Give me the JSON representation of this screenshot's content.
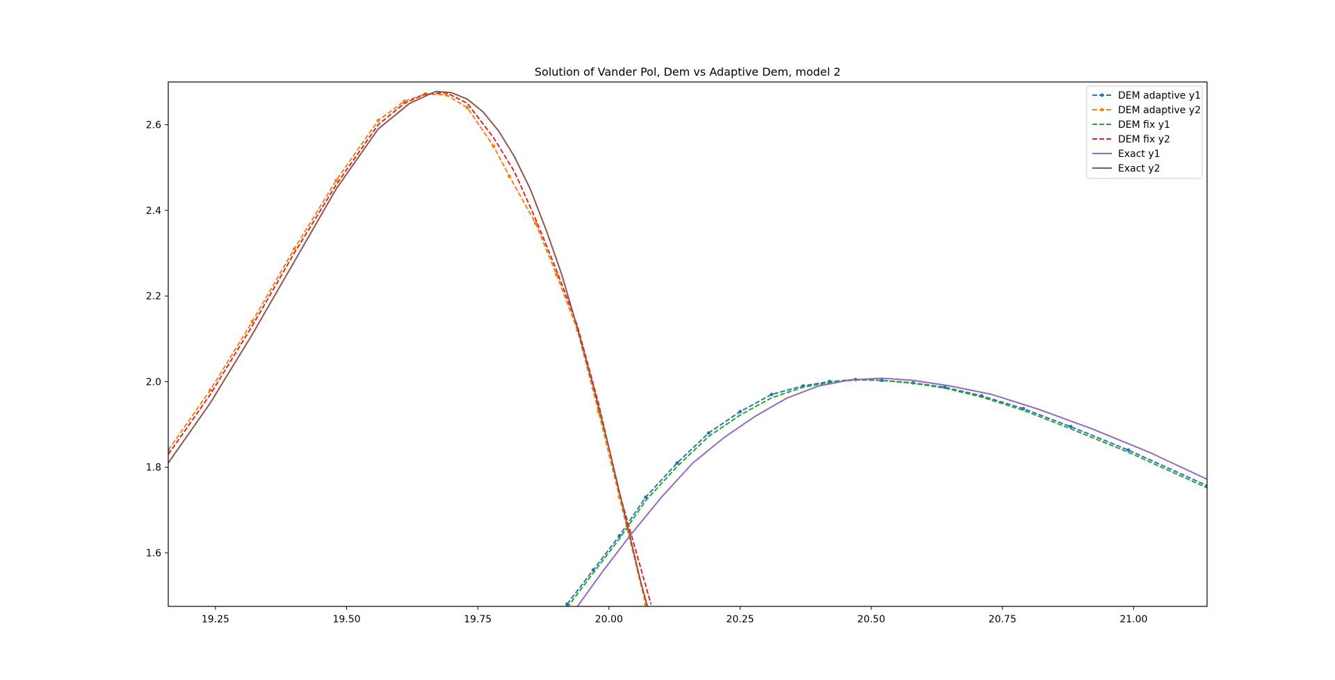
{
  "chart_data": {
    "type": "line",
    "title": "Solution of Vander Pol, Dem vs Adaptive Dem, model 2",
    "xlabel": "",
    "ylabel": "",
    "xlim": [
      19.16,
      21.14
    ],
    "ylim": [
      1.475,
      2.7
    ],
    "xticks": [
      19.25,
      19.5,
      19.75,
      20.0,
      20.25,
      20.5,
      20.75,
      21.0
    ],
    "xtick_labels": [
      "19.25",
      "19.50",
      "19.75",
      "20.00",
      "20.25",
      "20.50",
      "20.75",
      "21.00"
    ],
    "yticks": [
      1.6,
      1.8,
      2.0,
      2.2,
      2.4,
      2.6
    ],
    "ytick_labels": [
      "1.6",
      "1.8",
      "2.0",
      "2.2",
      "2.4",
      "2.6"
    ],
    "grid": false,
    "legend_position": "upper right",
    "series": [
      {
        "name": "DEM adaptive y1",
        "color": "#1f77b4",
        "style": "dashed",
        "marker": "dot",
        "x": [
          19.92,
          19.97,
          20.02,
          20.07,
          20.13,
          20.19,
          20.25,
          20.31,
          20.37,
          20.42,
          20.47,
          20.52,
          20.58,
          20.64,
          20.71,
          20.79,
          20.88,
          20.99,
          21.14
        ],
        "y": [
          1.48,
          1.56,
          1.64,
          1.73,
          1.81,
          1.88,
          1.93,
          1.97,
          1.99,
          2.0,
          2.005,
          2.003,
          1.997,
          1.987,
          1.967,
          1.937,
          1.895,
          1.84,
          1.757
        ]
      },
      {
        "name": "DEM adaptive y2",
        "color": "#ff7f0e",
        "style": "dashed",
        "marker": "dot",
        "x": [
          19.16,
          19.24,
          19.32,
          19.4,
          19.48,
          19.56,
          19.61,
          19.65,
          19.69,
          19.73,
          19.78,
          19.81,
          19.86,
          19.9,
          19.94,
          19.98,
          20.02,
          20.07
        ],
        "y": [
          1.84,
          1.98,
          2.14,
          2.31,
          2.47,
          2.61,
          2.655,
          2.672,
          2.67,
          2.64,
          2.55,
          2.48,
          2.37,
          2.25,
          2.12,
          1.93,
          1.73,
          1.48
        ]
      },
      {
        "name": "DEM fix y1",
        "color": "#2ca02c",
        "style": "dashed",
        "marker": "none",
        "x": [
          19.92,
          19.97,
          20.02,
          20.07,
          20.13,
          20.19,
          20.25,
          20.31,
          20.37,
          20.42,
          20.47,
          20.52,
          20.58,
          20.64,
          20.71,
          20.79,
          20.88,
          20.99,
          21.14
        ],
        "y": [
          1.472,
          1.553,
          1.633,
          1.722,
          1.802,
          1.872,
          1.922,
          1.962,
          1.987,
          1.998,
          2.004,
          2.003,
          1.996,
          1.985,
          1.964,
          1.933,
          1.89,
          1.835,
          1.752
        ]
      },
      {
        "name": "DEM fix y2",
        "color": "#d62728",
        "style": "dashed",
        "marker": "none",
        "x": [
          19.16,
          19.24,
          19.32,
          19.4,
          19.48,
          19.56,
          19.61,
          19.65,
          19.69,
          19.73,
          19.78,
          19.82,
          19.86,
          19.9,
          19.94,
          19.98,
          20.02,
          20.08
        ],
        "y": [
          1.83,
          1.97,
          2.13,
          2.3,
          2.46,
          2.6,
          2.65,
          2.672,
          2.675,
          2.65,
          2.57,
          2.49,
          2.38,
          2.26,
          2.13,
          1.95,
          1.74,
          1.48
        ]
      },
      {
        "name": "Exact y1",
        "color": "#9467bd",
        "style": "solid",
        "marker": "none",
        "x": [
          19.94,
          19.99,
          20.04,
          20.1,
          20.16,
          20.22,
          20.28,
          20.34,
          20.4,
          20.46,
          20.52,
          20.58,
          20.65,
          20.73,
          20.82,
          20.92,
          21.03,
          21.14
        ],
        "y": [
          1.475,
          1.56,
          1.64,
          1.73,
          1.81,
          1.87,
          1.92,
          1.962,
          1.99,
          2.004,
          2.008,
          2.003,
          1.99,
          1.97,
          1.935,
          1.89,
          1.835,
          1.772
        ]
      },
      {
        "name": "Exact y2",
        "color": "#8c564b",
        "style": "solid",
        "marker": "none",
        "x": [
          19.16,
          19.24,
          19.32,
          19.4,
          19.48,
          19.56,
          19.62,
          19.67,
          19.7,
          19.73,
          19.76,
          19.79,
          19.82,
          19.85,
          19.88,
          19.91,
          19.94,
          19.97,
          20.0,
          20.03,
          20.06,
          20.09
        ],
        "y": [
          1.81,
          1.95,
          2.11,
          2.28,
          2.45,
          2.59,
          2.65,
          2.678,
          2.675,
          2.66,
          2.63,
          2.585,
          2.525,
          2.45,
          2.355,
          2.25,
          2.125,
          1.99,
          1.845,
          1.69,
          1.535,
          1.4
        ]
      }
    ]
  }
}
